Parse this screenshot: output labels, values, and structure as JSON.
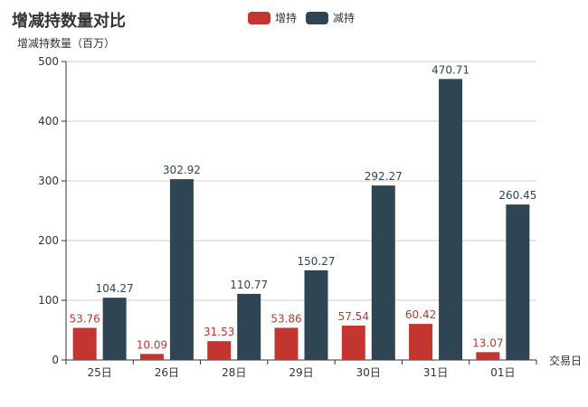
{
  "chart_data": {
    "type": "bar",
    "title": "增减持数量对比",
    "ylabel": "增减持数量（百万）",
    "xlabel": "交易日",
    "categories": [
      "25日",
      "26日",
      "28日",
      "29日",
      "30日",
      "31日",
      "01日"
    ],
    "ylim": [
      0,
      500
    ],
    "yticks": [
      0,
      100,
      200,
      300,
      400,
      500
    ],
    "grid": true,
    "legend_position": "top-center",
    "series": [
      {
        "name": "增持",
        "color": "#c23531",
        "values": [
          53.76,
          10.09,
          31.53,
          53.86,
          57.54,
          60.42,
          13.07
        ]
      },
      {
        "name": "减持",
        "color": "#2f4554",
        "values": [
          104.27,
          302.92,
          110.77,
          150.27,
          292.27,
          470.71,
          260.45
        ]
      }
    ]
  }
}
